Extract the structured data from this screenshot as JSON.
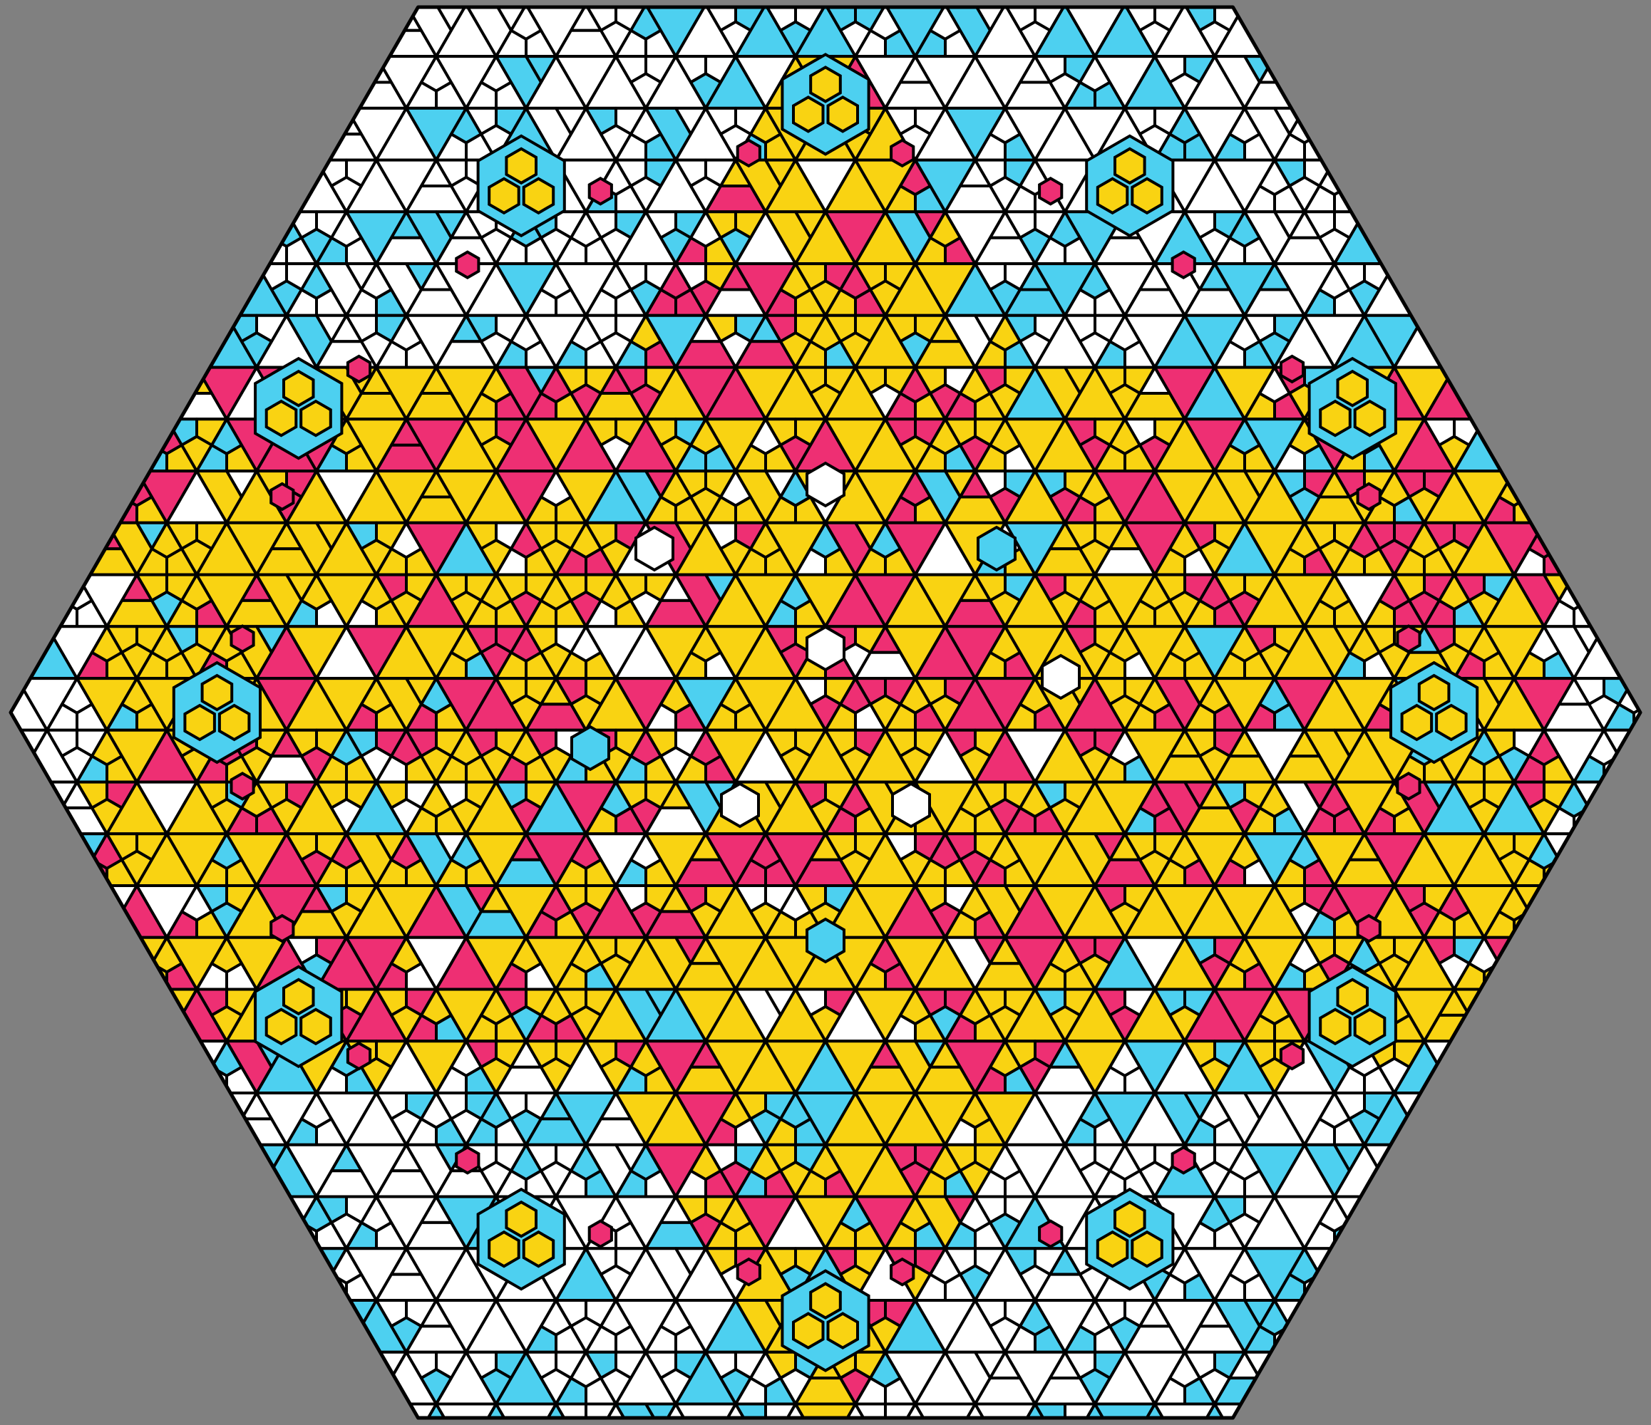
{
  "artwork": {
    "kind": "hexagonal stained-glass style tiling",
    "palette": {
      "background": "#808080",
      "outline": "#000000",
      "white": "#ffffff",
      "cyan": "#4dd0f0",
      "yellow": "#f9d312",
      "magenta": "#ee2f73"
    },
    "regions": {
      "outer_band_colors": [
        "white",
        "cyan"
      ],
      "star_colors": [
        "yellow",
        "magenta"
      ],
      "core_colors": [
        "yellow",
        "magenta",
        "white",
        "cyan"
      ]
    },
    "accent_clusters": {
      "yellow_trefoils": 12,
      "magenta_hexagons": 24
    }
  }
}
